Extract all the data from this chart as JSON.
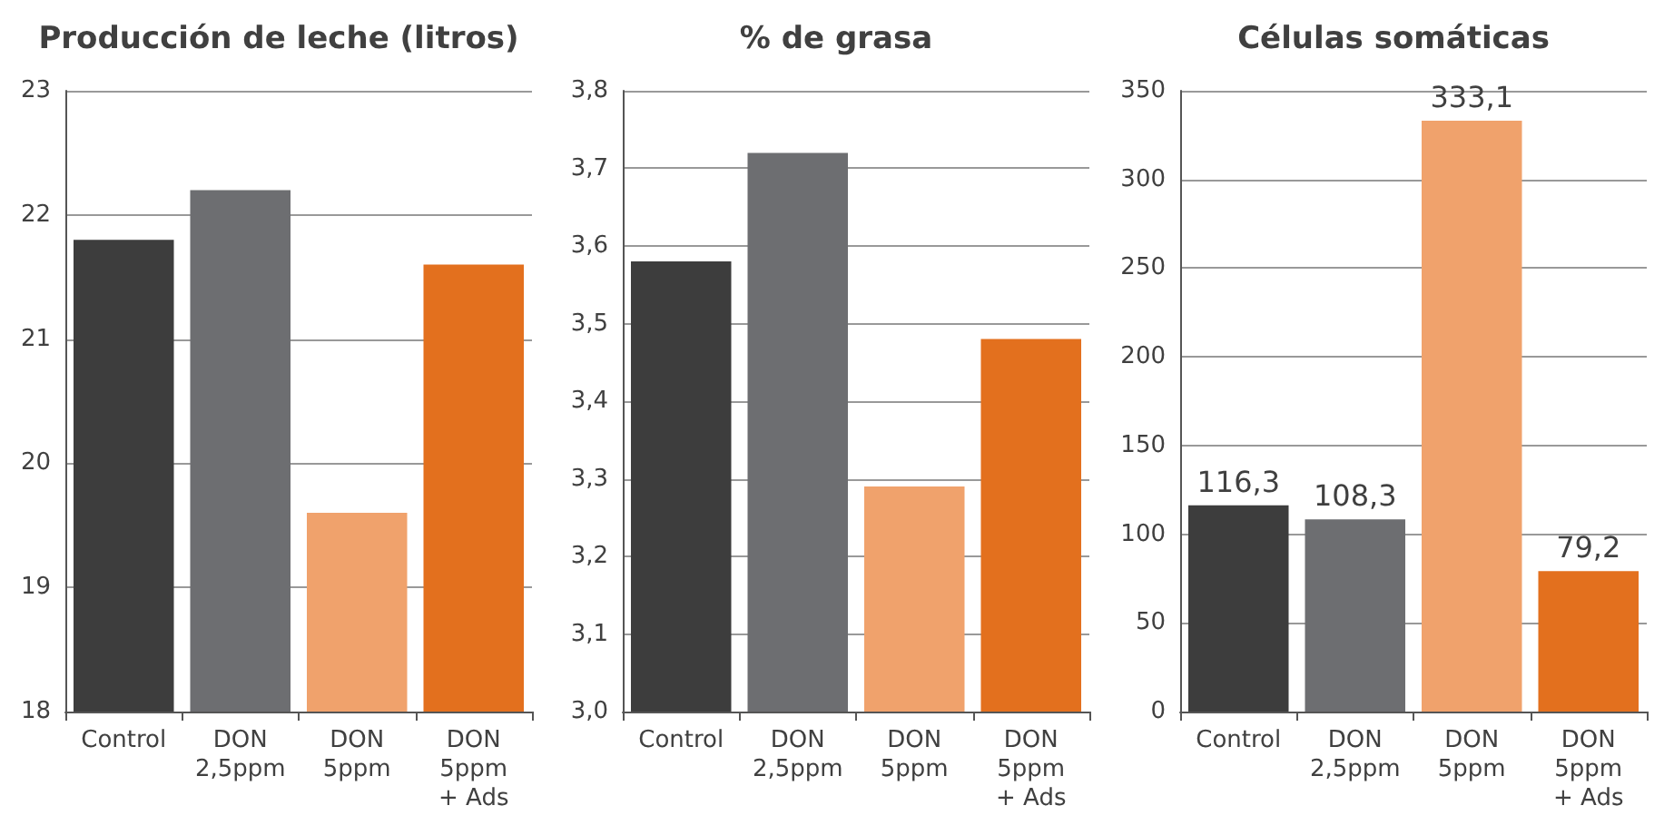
{
  "chart_data": [
    {
      "type": "bar",
      "title": "Producción de leche (litros)",
      "categories": [
        "Control",
        "DON 2,5ppm",
        "DON 5ppm",
        "DON 5ppm + Ads"
      ],
      "values": [
        21.8,
        22.2,
        19.6,
        21.6
      ],
      "colors": [
        "#3d3d3d",
        "#6d6e71",
        "#f0a26c",
        "#e3701e"
      ],
      "ylim": [
        18,
        23
      ],
      "yticks": [
        18,
        19,
        20,
        21,
        22,
        23
      ],
      "grid": "y"
    },
    {
      "type": "bar",
      "title": "% de grasa",
      "categories": [
        "Control",
        "DON 2,5ppm",
        "DON 5ppm",
        "DON 5ppm + Ads"
      ],
      "values": [
        3.58,
        3.72,
        3.29,
        3.48
      ],
      "colors": [
        "#3d3d3d",
        "#6d6e71",
        "#f0a26c",
        "#e3701e"
      ],
      "ylim": [
        3.0,
        3.8
      ],
      "yticks": [
        {
          "value": 3.0,
          "label": "3,0"
        },
        {
          "value": 3.1,
          "label": "3,1"
        },
        {
          "value": 3.2,
          "label": "3,2"
        },
        {
          "value": 3.3,
          "label": "3,3"
        },
        {
          "value": 3.4,
          "label": "3,4"
        },
        {
          "value": 3.5,
          "label": "3,5"
        },
        {
          "value": 3.6,
          "label": "3,6"
        },
        {
          "value": 3.7,
          "label": "3,7"
        },
        {
          "value": 3.8,
          "label": "3,8"
        }
      ],
      "grid": "y"
    },
    {
      "type": "bar",
      "title": "Células somáticas",
      "categories": [
        "Control",
        "DON 2,5ppm",
        "DON 5ppm",
        "DON 5ppm + Ads"
      ],
      "values": [
        116.3,
        108.3,
        333.1,
        79.2
      ],
      "value_labels": [
        "116,3",
        "108,3",
        "333,1",
        "79,2"
      ],
      "colors": [
        "#3d3d3d",
        "#6d6e71",
        "#f0a26c",
        "#e3701e"
      ],
      "ylim": [
        0,
        350
      ],
      "yticks": [
        0,
        50,
        100,
        150,
        200,
        250,
        300,
        350
      ],
      "grid": "y"
    }
  ]
}
